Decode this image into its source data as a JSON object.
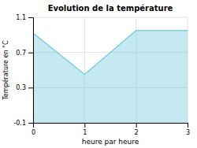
{
  "chart_data": {
    "type": "area",
    "title": "Evolution de la température",
    "xlabel": "heure par heure",
    "ylabel": "Température en °C",
    "x": [
      0,
      1,
      2,
      3
    ],
    "values": [
      0.92,
      0.45,
      0.95,
      0.95
    ],
    "color": "#7dcfdf",
    "xlim": [
      0,
      3
    ],
    "ylim": [
      -0.1,
      1.1
    ],
    "xticks": [
      0,
      1,
      2,
      3
    ],
    "yticks": [
      -0.1,
      0.3,
      0.7,
      1.1
    ],
    "grid": true
  }
}
